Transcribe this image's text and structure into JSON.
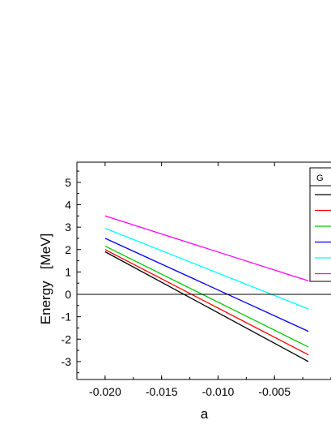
{
  "chart_data": {
    "type": "line",
    "title": "",
    "xlabel": "a",
    "ylabel": "Energy   [MeV]",
    "xlim": [
      -0.0225,
      0.0
    ],
    "ylim": [
      -3.8,
      5.9
    ],
    "x_ticks": [
      "-0.020",
      "-0.015",
      "-0.010",
      "-0.005"
    ],
    "x_tick_values": [
      -0.02,
      -0.015,
      -0.01,
      -0.005
    ],
    "y_ticks": [
      "-3",
      "-2",
      "-1",
      "0",
      "1",
      "2",
      "3",
      "4",
      "5"
    ],
    "y_tick_values": [
      -3,
      -2,
      -1,
      0,
      1,
      2,
      3,
      4,
      5
    ],
    "reference_line": {
      "y": 0,
      "color": "#000000"
    },
    "legend": {
      "placement": "top-right",
      "visible_text": "G"
    },
    "grid": false,
    "series": [
      {
        "color": "#000000",
        "x": [
          -0.02,
          -0.002
        ],
        "y": [
          1.9,
          -3.0
        ]
      },
      {
        "color": "#ff0000",
        "x": [
          -0.02,
          -0.002
        ],
        "y": [
          2.0,
          -2.7
        ]
      },
      {
        "color": "#00cc00",
        "x": [
          -0.02,
          -0.002
        ],
        "y": [
          2.15,
          -2.35
        ]
      },
      {
        "color": "#0000ff",
        "x": [
          -0.02,
          -0.002
        ],
        "y": [
          2.5,
          -1.65
        ]
      },
      {
        "color": "#00ffff",
        "x": [
          -0.02,
          -0.002
        ],
        "y": [
          2.95,
          -0.65
        ]
      },
      {
        "color": "#ff00ff",
        "x": [
          -0.02,
          -0.002
        ],
        "y": [
          3.5,
          0.6
        ]
      }
    ]
  }
}
